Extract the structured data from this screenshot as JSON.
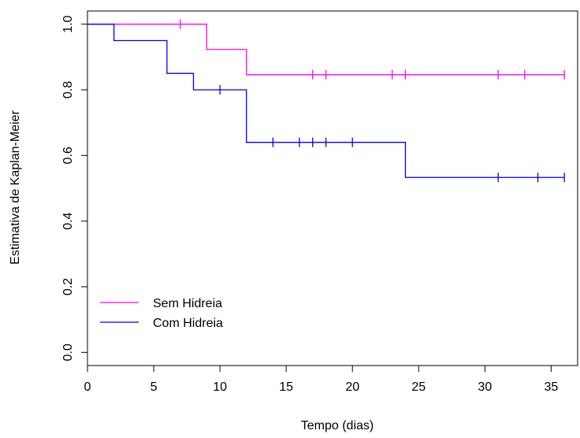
{
  "chart_data": {
    "type": "line",
    "subtype": "kaplan-meier-step",
    "title": "",
    "xlabel": "Tempo (dias)",
    "ylabel": "Estimativa de Kaplan-Meier",
    "xlim": [
      0,
      37
    ],
    "ylim": [
      -0.04,
      1.04
    ],
    "xticks": [
      0,
      5,
      10,
      15,
      20,
      25,
      30,
      35
    ],
    "xtick_labels": [
      "0",
      "5",
      "10",
      "15",
      "20",
      "25",
      "30",
      "35"
    ],
    "yticks": [
      0.0,
      0.2,
      0.4,
      0.6,
      0.8,
      1.0
    ],
    "ytick_labels": [
      "0.0",
      "0.2",
      "0.4",
      "0.6",
      "0.8",
      "1.0"
    ],
    "grid": false,
    "legend_position": "bottom-left",
    "series": [
      {
        "name": "Sem Hidreia",
        "color": "#ff00ff",
        "steps": [
          [
            0,
            1.0
          ],
          [
            9,
            0.923
          ],
          [
            12,
            0.846
          ]
        ],
        "x_end": 36,
        "censored": [
          [
            7,
            1.0
          ],
          [
            17,
            0.846
          ],
          [
            18,
            0.846
          ],
          [
            23,
            0.846
          ],
          [
            24,
            0.846
          ],
          [
            31,
            0.846
          ],
          [
            33,
            0.846
          ],
          [
            36,
            0.846
          ]
        ]
      },
      {
        "name": "Com Hidreia",
        "color": "#0000ff",
        "steps": [
          [
            0,
            1.0
          ],
          [
            2,
            0.95
          ],
          [
            6,
            0.85
          ],
          [
            8,
            0.8
          ],
          [
            12,
            0.64
          ],
          [
            24,
            0.533
          ]
        ],
        "x_end": 36,
        "censored": [
          [
            10,
            0.8
          ],
          [
            14,
            0.64
          ],
          [
            16,
            0.64
          ],
          [
            17,
            0.64
          ],
          [
            18,
            0.64
          ],
          [
            20,
            0.64
          ],
          [
            31,
            0.533
          ],
          [
            34,
            0.533
          ],
          [
            36,
            0.533
          ]
        ]
      }
    ]
  }
}
